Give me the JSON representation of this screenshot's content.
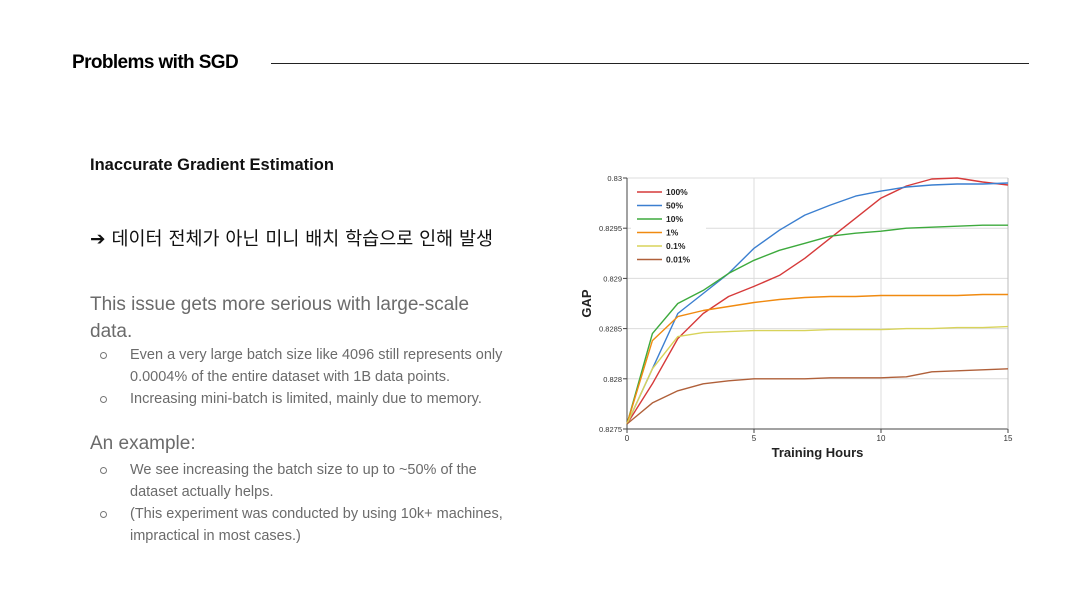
{
  "slide": {
    "title": "Problems with SGD",
    "subtitle": "Inaccurate Gradient Estimation",
    "korean_arrow": "➔",
    "korean_text": "데이터 전체가 아닌 미니 배치 학습으로 인해 발생",
    "issue_heading": "This issue gets more serious with large-scale data.",
    "bullets_1": [
      "Even a very large batch size like 4096 still represents only 0.0004% of the entire dataset with 1B data points.",
      "Increasing mini-batch is limited, mainly due to memory."
    ],
    "example_heading": "An example:",
    "bullets_2": [
      "We see increasing the batch size to up to ~50% of the dataset actually helps.",
      "(This experiment was conducted by using 10k+ machines, impractical in most cases.)"
    ]
  },
  "colors": {
    "100%": "#d63a3a",
    "50%": "#3b7fd0",
    "10%": "#3daa3d",
    "1%": "#f08a10",
    "0.1%": "#d8d35a",
    "0.01%": "#b0603a"
  },
  "chart_data": {
    "type": "line",
    "xlabel": "Training Hours",
    "ylabel": "GAP",
    "xlim": [
      0,
      15
    ],
    "ylim": [
      0.8275,
      0.83
    ],
    "xticks": [
      0,
      5,
      10,
      15
    ],
    "xtick_labels": [
      "0",
      "5",
      "10",
      "15"
    ],
    "yticks": [
      0.8275,
      0.828,
      0.8285,
      0.829,
      0.8295,
      0.83
    ],
    "ytick_labels": [
      "0.8275",
      "0.828",
      "0.8285",
      "0.829",
      "0.8295",
      "0.83"
    ],
    "grid": true,
    "legend_position": "top-left",
    "series": [
      {
        "name": "100%",
        "x": [
          0,
          1,
          2,
          3,
          4,
          5,
          6,
          7,
          8,
          9,
          10,
          11,
          12,
          13,
          14,
          15
        ],
        "y": [
          0.82755,
          0.82795,
          0.8284,
          0.82865,
          0.82882,
          0.82892,
          0.82903,
          0.8292,
          0.8294,
          0.8296,
          0.8298,
          0.82992,
          0.82999,
          0.83,
          0.82996,
          0.82993
        ]
      },
      {
        "name": "50%",
        "x": [
          0,
          1,
          2,
          3,
          4,
          5,
          6,
          7,
          8,
          9,
          10,
          11,
          12,
          13,
          14,
          15
        ],
        "y": [
          0.82755,
          0.8281,
          0.82865,
          0.82885,
          0.82905,
          0.8293,
          0.82948,
          0.82963,
          0.82973,
          0.82982,
          0.82987,
          0.82991,
          0.82993,
          0.82994,
          0.82994,
          0.82995
        ]
      },
      {
        "name": "10%",
        "x": [
          0,
          1,
          2,
          3,
          4,
          5,
          6,
          7,
          8,
          9,
          10,
          11,
          12,
          13,
          14,
          15
        ],
        "y": [
          0.82755,
          0.82845,
          0.82875,
          0.82888,
          0.82905,
          0.82918,
          0.82928,
          0.82935,
          0.82942,
          0.82945,
          0.82947,
          0.8295,
          0.82951,
          0.82952,
          0.82953,
          0.82953
        ]
      },
      {
        "name": "1%",
        "x": [
          0,
          1,
          2,
          3,
          4,
          5,
          6,
          7,
          8,
          9,
          10,
          11,
          12,
          13,
          14,
          15
        ],
        "y": [
          0.82755,
          0.82838,
          0.82862,
          0.82868,
          0.82872,
          0.82876,
          0.82879,
          0.82881,
          0.82882,
          0.82882,
          0.82883,
          0.82883,
          0.82883,
          0.82883,
          0.82884,
          0.82884
        ]
      },
      {
        "name": "0.1%",
        "x": [
          0,
          1,
          2,
          3,
          4,
          5,
          6,
          7,
          8,
          9,
          10,
          11,
          12,
          13,
          14,
          15
        ],
        "y": [
          0.82755,
          0.8281,
          0.82842,
          0.82846,
          0.82847,
          0.82848,
          0.82848,
          0.82848,
          0.82849,
          0.82849,
          0.82849,
          0.8285,
          0.8285,
          0.82851,
          0.82851,
          0.82852
        ]
      },
      {
        "name": "0.01%",
        "x": [
          0,
          1,
          2,
          3,
          4,
          5,
          6,
          7,
          8,
          9,
          10,
          11,
          12,
          13,
          14,
          15
        ],
        "y": [
          0.82755,
          0.82776,
          0.82788,
          0.82795,
          0.82798,
          0.828,
          0.828,
          0.828,
          0.82801,
          0.82801,
          0.82801,
          0.82802,
          0.82807,
          0.82808,
          0.82809,
          0.8281
        ]
      }
    ]
  }
}
